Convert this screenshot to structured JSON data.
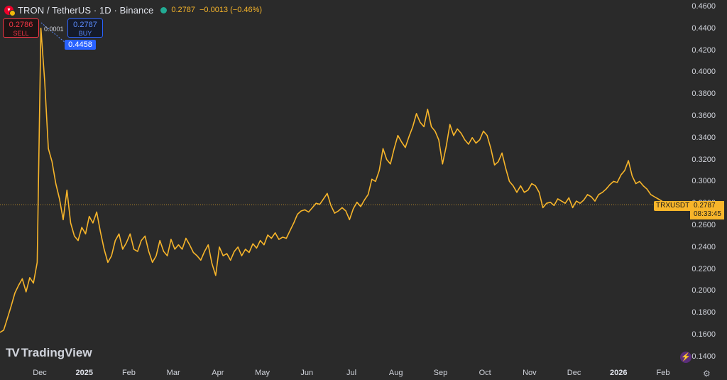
{
  "header": {
    "title": "TRON / TetherUS · 1D · Binance",
    "last_price": "0.2787",
    "change": "−0.0013 (−0.46%)"
  },
  "trade": {
    "sell_price": "0.2786",
    "sell_label": "SELL",
    "spread": "0.0001",
    "buy_price": "0.2787",
    "buy_label": "BUY"
  },
  "high_marker": "0.4458",
  "price_scale": {
    "symbol": "TRXUSDT",
    "price": "0.2787",
    "countdown": "08:33:45"
  },
  "brand": {
    "name": "TradingView"
  },
  "colors": {
    "background": "#2a2a2a",
    "line": "#f7b52a",
    "sell": "#f23645",
    "buy": "#2962ff"
  },
  "chart_data": {
    "type": "line",
    "series": [
      {
        "values": [
          0.162,
          0.164,
          0.175,
          0.186,
          0.198,
          0.205,
          0.211,
          0.199,
          0.212,
          0.207,
          0.226,
          0.44,
          0.392,
          0.33,
          0.318,
          0.298,
          0.284,
          0.265,
          0.292,
          0.262,
          0.25,
          0.246,
          0.258,
          0.252,
          0.268,
          0.262,
          0.272,
          0.254,
          0.238,
          0.226,
          0.232,
          0.246,
          0.252,
          0.238,
          0.244,
          0.252,
          0.238,
          0.236,
          0.246,
          0.25,
          0.236,
          0.226,
          0.232,
          0.246,
          0.236,
          0.232,
          0.247,
          0.238,
          0.242,
          0.238,
          0.248,
          0.242,
          0.235,
          0.232,
          0.228,
          0.236,
          0.242,
          0.225,
          0.214,
          0.24,
          0.232,
          0.234,
          0.228,
          0.236,
          0.24,
          0.232,
          0.238,
          0.235,
          0.243,
          0.239,
          0.246,
          0.242,
          0.251,
          0.248,
          0.253,
          0.247,
          0.249,
          0.248,
          0.255,
          0.262,
          0.27,
          0.273,
          0.274,
          0.272,
          0.276,
          0.28,
          0.279,
          0.284,
          0.289,
          0.278,
          0.271,
          0.273,
          0.276,
          0.273,
          0.265,
          0.275,
          0.281,
          0.277,
          0.283,
          0.288,
          0.302,
          0.3,
          0.31,
          0.33,
          0.32,
          0.316,
          0.33,
          0.342,
          0.336,
          0.331,
          0.341,
          0.35,
          0.362,
          0.354,
          0.35,
          0.366,
          0.35,
          0.346,
          0.338,
          0.316,
          0.332,
          0.352,
          0.342,
          0.348,
          0.344,
          0.338,
          0.334,
          0.34,
          0.335,
          0.338,
          0.346,
          0.342,
          0.33,
          0.315,
          0.318,
          0.326,
          0.312,
          0.3,
          0.296,
          0.29,
          0.296,
          0.29,
          0.292,
          0.298,
          0.296,
          0.29,
          0.276,
          0.28,
          0.281,
          0.278,
          0.284,
          0.282,
          0.28,
          0.285,
          0.276,
          0.282,
          0.28,
          0.283,
          0.288,
          0.286,
          0.282,
          0.288,
          0.29,
          0.293,
          0.297,
          0.3,
          0.299,
          0.306,
          0.31,
          0.319,
          0.305,
          0.298,
          0.3,
          0.296,
          0.293,
          0.288,
          0.286,
          0.284,
          0.282,
          0.279,
          0.278,
          0.2787
        ]
      }
    ],
    "xlabel": "",
    "ylabel": "",
    "ylim": [
      0.13,
      0.467
    ],
    "y_ticks": [
      "0.4600",
      "0.4400",
      "0.4200",
      "0.4000",
      "0.3800",
      "0.3600",
      "0.3400",
      "0.3200",
      "0.3000",
      "0.2800",
      "0.2600",
      "0.2400",
      "0.2200",
      "0.2000",
      "0.1800",
      "0.1600",
      "0.1400"
    ],
    "x_ticks": [
      {
        "label": "Dec",
        "bold": false
      },
      {
        "label": "2025",
        "bold": true
      },
      {
        "label": "Feb",
        "bold": false
      },
      {
        "label": "Mar",
        "bold": false
      },
      {
        "label": "Apr",
        "bold": false
      },
      {
        "label": "May",
        "bold": false
      },
      {
        "label": "Jun",
        "bold": false
      },
      {
        "label": "Jul",
        "bold": false
      },
      {
        "label": "Aug",
        "bold": false
      },
      {
        "label": "Sep",
        "bold": false
      },
      {
        "label": "Oct",
        "bold": false
      },
      {
        "label": "Nov",
        "bold": false
      },
      {
        "label": "Dec",
        "bold": false
      },
      {
        "label": "2026",
        "bold": true
      },
      {
        "label": "Feb",
        "bold": false
      }
    ],
    "last_value": 0.2787,
    "grid": false
  }
}
